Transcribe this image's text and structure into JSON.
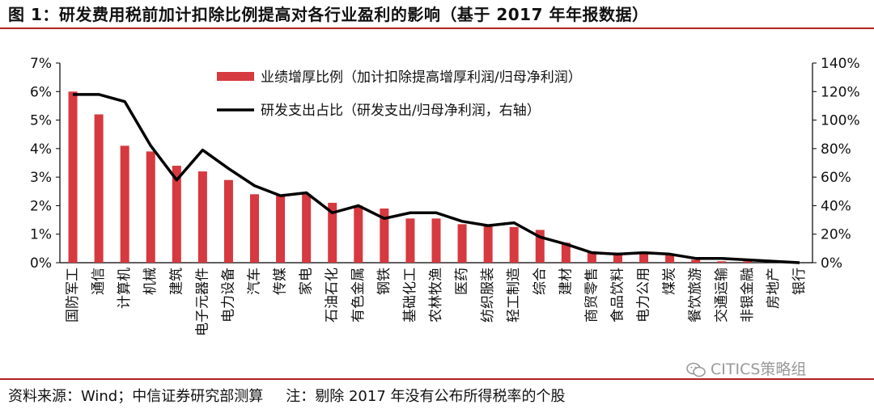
{
  "header": {
    "title": "图 1：研发费用税前加计扣除比例提高对各行业盈利的影响（基于 2017 年年报数据）"
  },
  "footer": {
    "source": "资料来源：Wind；中信证券研究部测算",
    "note": "注：剔除 2017 年没有公布所得税率的个股"
  },
  "watermark": {
    "text": "CITICS策略组",
    "icon": "wechat-icon"
  },
  "colors": {
    "bar": "#d6393f",
    "line": "#000000",
    "accent_rule": "#b22222"
  },
  "chart_data": {
    "type": "bar",
    "title": "",
    "categories": [
      "国防军工",
      "通信",
      "计算机",
      "机械",
      "建筑",
      "电子元器件",
      "电力设备",
      "汽车",
      "传媒",
      "家电",
      "石油石化",
      "有色金属",
      "钢铁",
      "基础化工",
      "农林牧渔",
      "医药",
      "纺织服装",
      "轻工制造",
      "综合",
      "建材",
      "商贸零售",
      "食品饮料",
      "电力公用",
      "煤炭",
      "餐饮旅游",
      "交通运输",
      "非银金融",
      "房地产",
      "银行"
    ],
    "series": [
      {
        "name": "业绩增厚比例（加计扣除提高增厚利润/归母净利润）",
        "type": "bar",
        "axis": "left",
        "values": [
          6.0,
          5.2,
          4.1,
          3.9,
          3.4,
          3.2,
          2.9,
          2.4,
          2.4,
          2.4,
          2.1,
          2.0,
          1.9,
          1.55,
          1.55,
          1.35,
          1.3,
          1.25,
          1.15,
          0.7,
          0.4,
          0.35,
          0.35,
          0.3,
          0.1,
          0.05,
          0.05,
          0.02,
          0.0
        ]
      },
      {
        "name": "研发支出占比（研发支出/归母净利润，右轴）",
        "type": "line",
        "axis": "right",
        "values": [
          118,
          118,
          113,
          82,
          58,
          79,
          66,
          54,
          47,
          49,
          35,
          40,
          31,
          35,
          35,
          29,
          26,
          28,
          18,
          13,
          7,
          6,
          7,
          6,
          3,
          3,
          2,
          1,
          0
        ]
      }
    ],
    "y_left": {
      "ylim": [
        0,
        7
      ],
      "ticks": [
        "0%",
        "1%",
        "2%",
        "3%",
        "4%",
        "5%",
        "6%",
        "7%"
      ]
    },
    "y_right": {
      "ylim": [
        0,
        140
      ],
      "ticks": [
        "0%",
        "20%",
        "40%",
        "60%",
        "80%",
        "100%",
        "120%",
        "140%"
      ]
    },
    "legend": "top-center",
    "grid": false
  }
}
